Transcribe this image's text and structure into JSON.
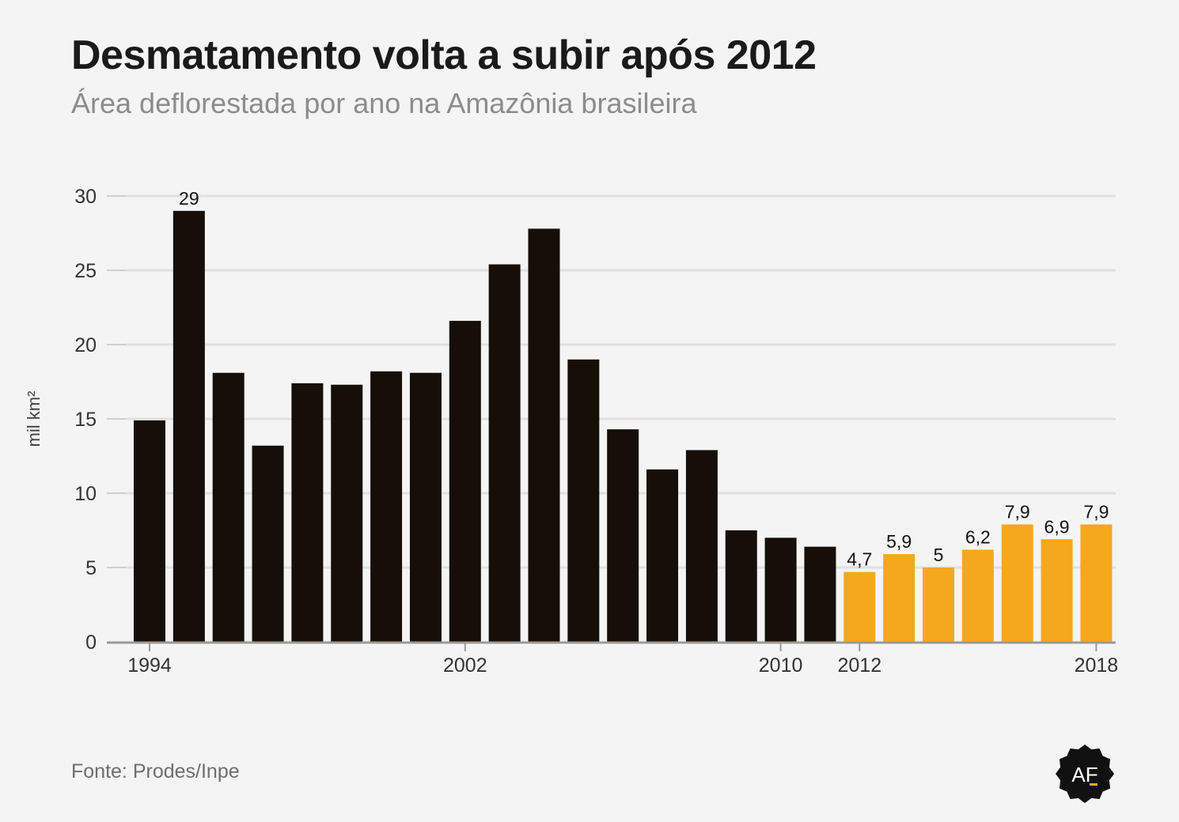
{
  "header": {
    "title": "Desmatamento volta a subir após 2012",
    "subtitle": "Área deflorestada por ano na Amazônia brasileira"
  },
  "footer": {
    "source": "Fonte: Prodes/Inpe"
  },
  "logo": {
    "text": "AF"
  },
  "colors": {
    "dark": "#150f07",
    "highlight": "#f6a81c",
    "grid": "#e0e0e0",
    "axis": "#9a9a9a"
  },
  "chart_data": {
    "type": "bar",
    "categories": [
      "1994",
      "1995",
      "1996",
      "1997",
      "1998",
      "1999",
      "2000",
      "2001",
      "2002",
      "2003",
      "2004",
      "2005",
      "2006",
      "2007",
      "2008",
      "2009",
      "2010",
      "2011",
      "2012",
      "2013",
      "2014",
      "2015",
      "2016",
      "2017",
      "2018"
    ],
    "values": [
      14.9,
      29.0,
      18.1,
      13.2,
      17.4,
      17.3,
      18.2,
      18.1,
      21.6,
      25.4,
      27.8,
      19.0,
      14.3,
      11.6,
      12.9,
      7.5,
      7.0,
      6.4,
      4.7,
      5.9,
      5.0,
      6.2,
      7.9,
      6.9,
      7.9
    ],
    "highlight_from": "2012",
    "data_labels": {
      "1995": "29",
      "2012": "4,7",
      "2013": "5,9",
      "2014": "5",
      "2015": "6,2",
      "2016": "7,9",
      "2017": "6,9",
      "2018": "7,9"
    },
    "x_tick_labels": [
      "1994",
      "2002",
      "2010",
      "2012",
      "2018"
    ],
    "y_ticks": [
      0,
      5,
      10,
      15,
      20,
      25,
      30
    ],
    "ylim": [
      0,
      30
    ],
    "ylabel": "mil km²",
    "xlabel": "",
    "grid": true
  }
}
